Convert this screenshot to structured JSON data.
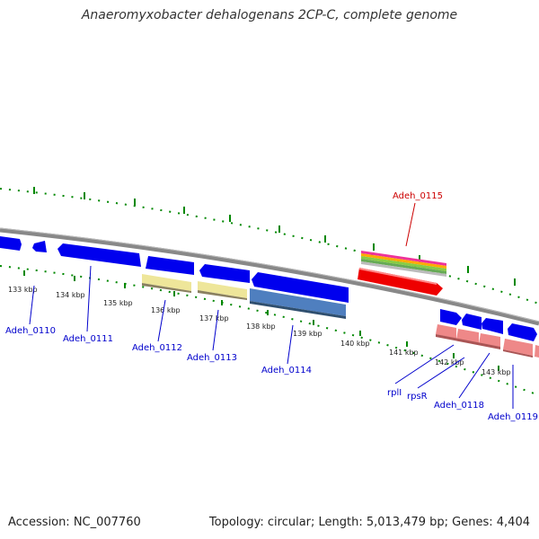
{
  "title": "Anaeromyxobacter dehalogenans 2CP-C, complete genome",
  "colors": {
    "forward_gene": "#0000ee",
    "reverse_gene": "#0000ee",
    "highlight_gene": "#ee0000",
    "label_blue": "#0000cc",
    "label_red": "#cc0000",
    "tick": "#008800",
    "backbone": "#888888",
    "yellow_feature": "#eee69a",
    "steel_feature": "#4f7fbf",
    "pink_feature": "#ee8888"
  },
  "tick_labels": [
    "133 kbp",
    "134 kbp",
    "135 kbp",
    "136 kbp",
    "137 kbp",
    "138 kbp",
    "139 kbp",
    "140 kbp",
    "141 kbp",
    "142 kbp",
    "143 kbp"
  ],
  "gene_labels": [
    {
      "id": "adeh-0110",
      "text": "Adeh_0110",
      "color": "blue"
    },
    {
      "id": "adeh-0111",
      "text": "Adeh_0111",
      "color": "blue"
    },
    {
      "id": "adeh-0112",
      "text": "Adeh_0112",
      "color": "blue"
    },
    {
      "id": "adeh-0113",
      "text": "Adeh_0113",
      "color": "blue"
    },
    {
      "id": "adeh-0114",
      "text": "Adeh_0114",
      "color": "blue"
    },
    {
      "id": "adeh-0115",
      "text": "Adeh_0115",
      "color": "red"
    },
    {
      "id": "rpli",
      "text": "rplI",
      "color": "blue"
    },
    {
      "id": "rpsr",
      "text": "rpsR",
      "color": "blue"
    },
    {
      "id": "adeh-0118",
      "text": "Adeh_0118",
      "color": "blue"
    },
    {
      "id": "adeh-0119",
      "text": "Adeh_0119",
      "color": "blue"
    }
  ],
  "footer": {
    "accession": "Accession: NC_007760",
    "summary": "Topology: circular; Length: 5,013,479 bp; Genes: 4,404"
  }
}
